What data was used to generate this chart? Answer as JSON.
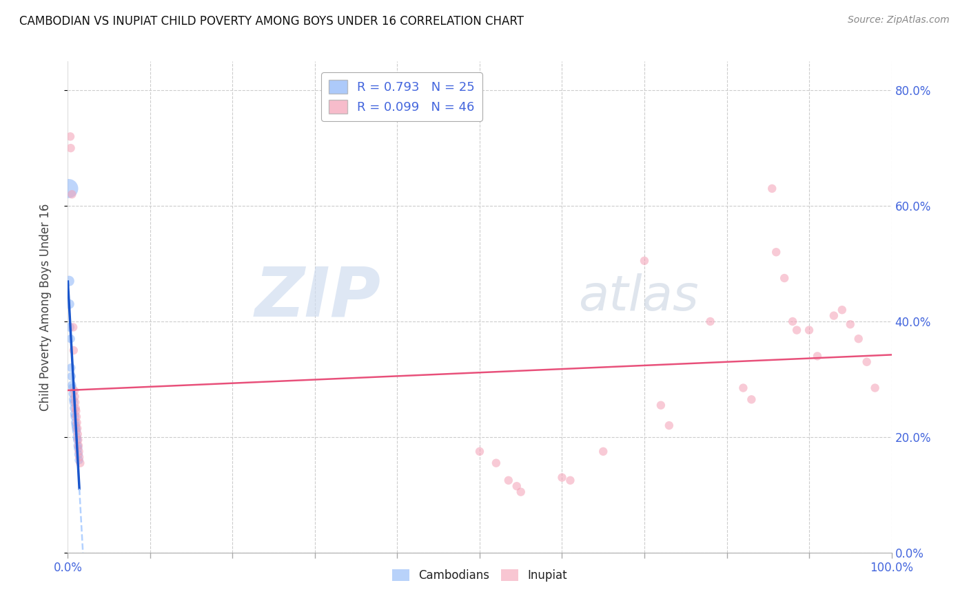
{
  "title": "CAMBODIAN VS INUPIAT CHILD POVERTY AMONG BOYS UNDER 16 CORRELATION CHART",
  "source": "Source: ZipAtlas.com",
  "ylabel": "Child Poverty Among Boys Under 16",
  "xlim": [
    0,
    1.0
  ],
  "ylim": [
    0,
    0.85
  ],
  "xticks": [
    0.0,
    1.0
  ],
  "xtick_labels": [
    "0.0%",
    "100.0%"
  ],
  "yticks": [
    0.0,
    0.2,
    0.4,
    0.6,
    0.8
  ],
  "ytick_labels": [
    "0.0%",
    "20.0%",
    "40.0%",
    "60.0%",
    "80.0%"
  ],
  "watermark_zip": "ZIP",
  "watermark_atlas": "atlas",
  "legend_line1": "R = 0.793   N = 25",
  "legend_line2": "R = 0.099   N = 46",
  "cambodian_color": "#8ab4f8",
  "inupiat_color": "#f4a0b5",
  "cambodian_trend_color": "#1a56cc",
  "inupiat_trend_color": "#e8507a",
  "grid_color": "#cccccc",
  "tick_label_color": "#4466dd",
  "cambodian_points": [
    [
      0.001,
      0.63
    ],
    [
      0.0015,
      0.47
    ],
    [
      0.002,
      0.43
    ],
    [
      0.0025,
      0.39
    ],
    [
      0.0035,
      0.37
    ],
    [
      0.004,
      0.32
    ],
    [
      0.0045,
      0.305
    ],
    [
      0.005,
      0.29
    ],
    [
      0.0055,
      0.285
    ],
    [
      0.006,
      0.275
    ],
    [
      0.0065,
      0.265
    ],
    [
      0.007,
      0.26
    ],
    [
      0.0075,
      0.25
    ],
    [
      0.008,
      0.24
    ],
    [
      0.0085,
      0.235
    ],
    [
      0.009,
      0.225
    ],
    [
      0.0095,
      0.22
    ],
    [
      0.01,
      0.215
    ],
    [
      0.0105,
      0.21
    ],
    [
      0.011,
      0.2
    ],
    [
      0.0115,
      0.195
    ],
    [
      0.012,
      0.185
    ],
    [
      0.0125,
      0.18
    ],
    [
      0.013,
      0.17
    ],
    [
      0.0135,
      0.16
    ]
  ],
  "cambodian_sizes": [
    400,
    120,
    100,
    90,
    80,
    80,
    80,
    80,
    80,
    80,
    80,
    80,
    80,
    80,
    80,
    80,
    80,
    80,
    80,
    80,
    80,
    80,
    80,
    80,
    80
  ],
  "inupiat_points": [
    [
      0.003,
      0.72
    ],
    [
      0.0035,
      0.7
    ],
    [
      0.005,
      0.62
    ],
    [
      0.0065,
      0.39
    ],
    [
      0.007,
      0.35
    ],
    [
      0.008,
      0.28
    ],
    [
      0.0085,
      0.27
    ],
    [
      0.009,
      0.26
    ],
    [
      0.0095,
      0.25
    ],
    [
      0.01,
      0.245
    ],
    [
      0.0105,
      0.235
    ],
    [
      0.011,
      0.225
    ],
    [
      0.0115,
      0.215
    ],
    [
      0.012,
      0.205
    ],
    [
      0.0125,
      0.195
    ],
    [
      0.013,
      0.185
    ],
    [
      0.0135,
      0.175
    ],
    [
      0.014,
      0.165
    ],
    [
      0.015,
      0.155
    ],
    [
      0.5,
      0.175
    ],
    [
      0.52,
      0.155
    ],
    [
      0.535,
      0.125
    ],
    [
      0.545,
      0.115
    ],
    [
      0.55,
      0.105
    ],
    [
      0.6,
      0.13
    ],
    [
      0.61,
      0.125
    ],
    [
      0.65,
      0.175
    ],
    [
      0.7,
      0.505
    ],
    [
      0.72,
      0.255
    ],
    [
      0.73,
      0.22
    ],
    [
      0.78,
      0.4
    ],
    [
      0.82,
      0.285
    ],
    [
      0.83,
      0.265
    ],
    [
      0.855,
      0.63
    ],
    [
      0.86,
      0.52
    ],
    [
      0.87,
      0.475
    ],
    [
      0.88,
      0.4
    ],
    [
      0.885,
      0.385
    ],
    [
      0.9,
      0.385
    ],
    [
      0.91,
      0.34
    ],
    [
      0.93,
      0.41
    ],
    [
      0.94,
      0.42
    ],
    [
      0.95,
      0.395
    ],
    [
      0.96,
      0.37
    ],
    [
      0.97,
      0.33
    ],
    [
      0.98,
      0.285
    ]
  ]
}
